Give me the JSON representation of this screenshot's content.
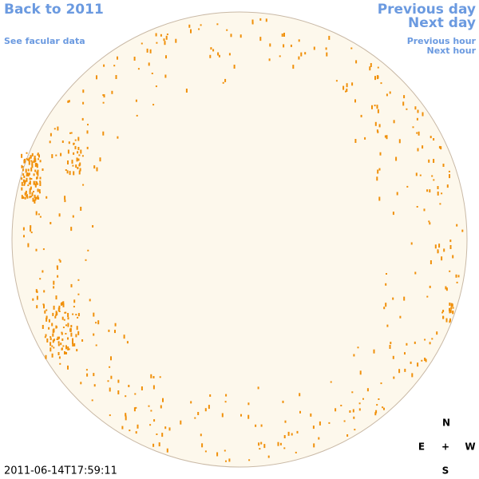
{
  "navigation": {
    "back_link": "Back to 2011",
    "facular_link": "See facular data",
    "previous_day": "Previous day",
    "next_day": "Next day",
    "previous_hour": "Previous hour",
    "next_hour": "Next hour"
  },
  "compass": {
    "north": "N",
    "east": "E",
    "center": "+",
    "west": "W",
    "south": "S"
  },
  "timestamp": "2011-06-14T17:59:11"
}
